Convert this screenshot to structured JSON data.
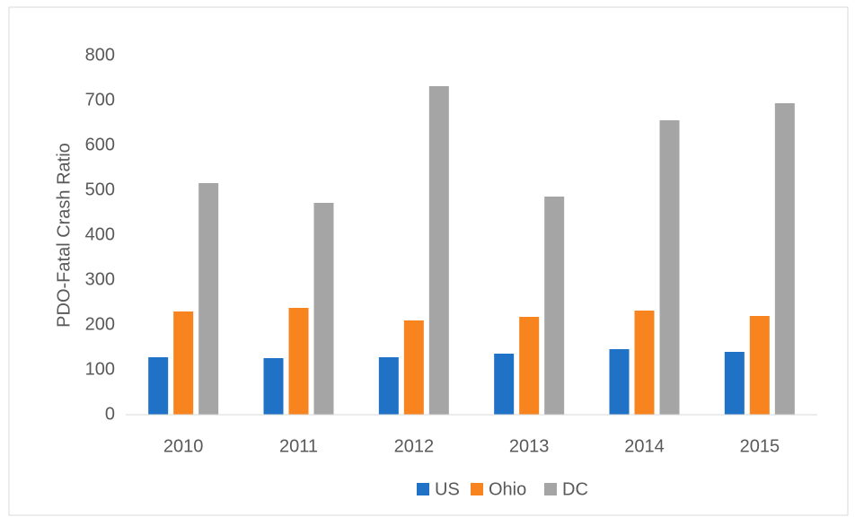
{
  "chart_data": {
    "type": "bar",
    "y_label": "PDO-Fatal Crash Ratio",
    "categories": [
      "2010",
      "2011",
      "2012",
      "2013",
      "2014",
      "2015"
    ],
    "series": [
      {
        "name": "US",
        "color": "#1f72c6",
        "values": [
          128,
          126,
          128,
          136,
          146,
          140
        ]
      },
      {
        "name": "Ohio",
        "color": "#f7841f",
        "values": [
          230,
          238,
          210,
          218,
          232,
          220
        ]
      },
      {
        "name": "DC",
        "color": "#a5a5a5",
        "values": [
          516,
          472,
          732,
          486,
          656,
          694
        ]
      }
    ],
    "ylim": [
      0,
      800
    ],
    "yticks": [
      0,
      100,
      200,
      300,
      400,
      500,
      600,
      700,
      800
    ],
    "grid": false,
    "legend": "bottom"
  }
}
